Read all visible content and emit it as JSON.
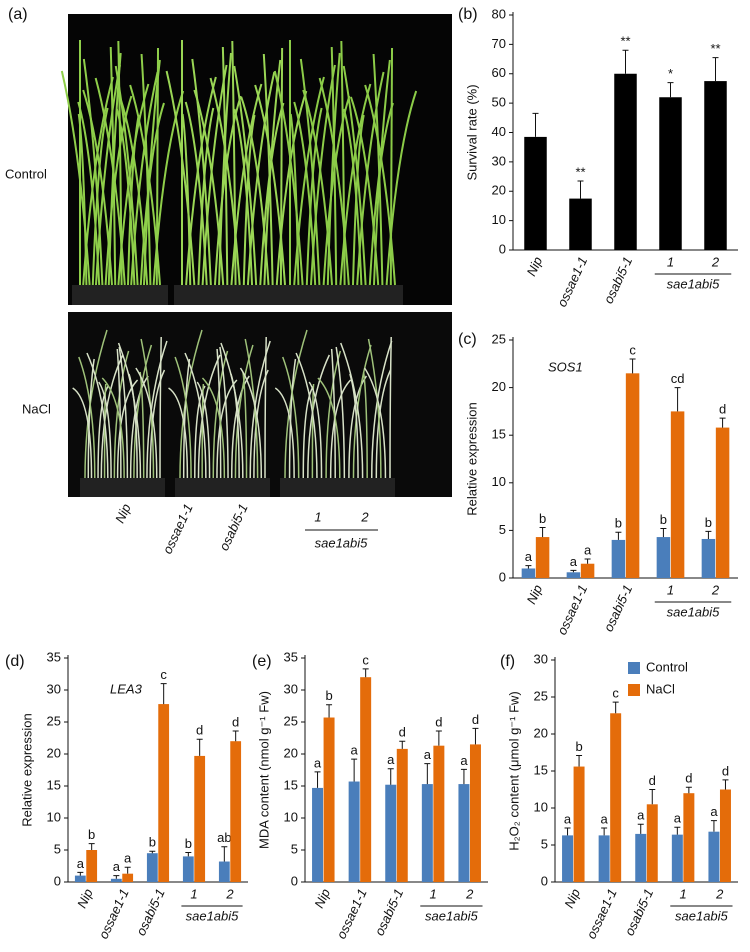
{
  "photo_panel": {
    "label": "(a)",
    "rows": [
      "Control",
      "NaCl"
    ],
    "categories": [
      "Nip",
      "ossae1-1",
      "osabi5-1",
      "1",
      "2"
    ],
    "group_label": "sae1abi5"
  },
  "chart_data": [
    {
      "type": "bar",
      "label": "(b)",
      "ylabel": "Survival rate (%)",
      "categories": [
        "Nip",
        "ossae1-1",
        "osabi5-1",
        "1",
        "2"
      ],
      "group_label": "sae1abi5",
      "ylim": [
        0,
        80
      ],
      "yticks": [
        0,
        10,
        20,
        30,
        40,
        50,
        60,
        70,
        80
      ],
      "series": [
        {
          "color": "#000000",
          "values": [
            38.5,
            17.5,
            60,
            52,
            57.5
          ],
          "errors": [
            8,
            6,
            8,
            5,
            8
          ],
          "labels": [
            null,
            "**",
            "**",
            "*",
            "**"
          ]
        }
      ]
    },
    {
      "type": "bar",
      "label": "(c)",
      "ylabel": "Relative expression",
      "gene": "SOS1",
      "categories": [
        "Nip",
        "ossae1-1",
        "osabi5-1",
        "1",
        "2"
      ],
      "group_label": "sae1abi5",
      "ylim": [
        0,
        25
      ],
      "yticks": [
        0,
        5,
        10,
        15,
        20,
        25
      ],
      "series": [
        {
          "name": "Control",
          "color": "#4a7ebb",
          "values": [
            1.0,
            0.6,
            4.0,
            4.3,
            4.1
          ],
          "errors": [
            0.3,
            0.2,
            0.8,
            0.9,
            0.8
          ],
          "labels": [
            "a",
            "a",
            "b",
            "b",
            "b"
          ]
        },
        {
          "name": "NaCl",
          "color": "#e46c0a",
          "values": [
            4.3,
            1.5,
            21.5,
            17.5,
            15.8
          ],
          "errors": [
            1.0,
            0.5,
            1.5,
            2.5,
            1.0
          ],
          "labels": [
            "b",
            "a",
            "c",
            "cd",
            "d"
          ]
        }
      ]
    },
    {
      "type": "bar",
      "label": "(d)",
      "ylabel": "Relative expression",
      "gene": "LEA3",
      "categories": [
        "Nip",
        "ossae1-1",
        "osabi5-1",
        "1",
        "2"
      ],
      "group_label": "sae1abi5",
      "ylim": [
        0,
        35
      ],
      "yticks": [
        0,
        5,
        10,
        15,
        20,
        25,
        30,
        35
      ],
      "series": [
        {
          "name": "Control",
          "color": "#4a7ebb",
          "values": [
            1.0,
            0.5,
            4.5,
            4.0,
            3.2
          ],
          "errors": [
            0.5,
            0.5,
            0.3,
            0.6,
            2.3
          ],
          "labels": [
            "a",
            "a",
            "b",
            "b",
            "ab"
          ]
        },
        {
          "name": "NaCl",
          "color": "#e46c0a",
          "values": [
            5.0,
            1.3,
            27.8,
            19.7,
            22.0
          ],
          "errors": [
            1.0,
            1.0,
            3.2,
            2.6,
            1.6
          ],
          "labels": [
            "b",
            "a",
            "c",
            "d",
            "d"
          ]
        }
      ]
    },
    {
      "type": "bar",
      "label": "(e)",
      "ylabel": "MDA content (nmol g⁻¹ Fw)",
      "categories": [
        "Nip",
        "ossae1-1",
        "osabi5-1",
        "1",
        "2"
      ],
      "group_label": "sae1abi5",
      "ylim": [
        0,
        35
      ],
      "yticks": [
        0,
        5,
        10,
        15,
        20,
        25,
        30,
        35
      ],
      "series": [
        {
          "name": "Control",
          "color": "#4a7ebb",
          "values": [
            14.7,
            15.7,
            15.2,
            15.3,
            15.3
          ],
          "errors": [
            2.5,
            3.5,
            2.5,
            3.2,
            2.3
          ],
          "labels": [
            "a",
            "a",
            "a",
            "a",
            "a"
          ]
        },
        {
          "name": "NaCl",
          "color": "#e46c0a",
          "values": [
            25.7,
            32.0,
            20.8,
            21.3,
            21.5
          ],
          "errors": [
            2.0,
            1.3,
            1.2,
            2.3,
            2.5
          ],
          "labels": [
            "b",
            "c",
            "d",
            "d",
            "d"
          ]
        }
      ]
    },
    {
      "type": "bar",
      "label": "(f)",
      "ylabel": "H₂O₂ content (μmol g⁻¹ Fw)",
      "categories": [
        "Nip",
        "ossae1-1",
        "osabi5-1",
        "1",
        "2"
      ],
      "group_label": "sae1abi5",
      "ylim": [
        0,
        30
      ],
      "yticks": [
        0,
        5,
        10,
        15,
        20,
        25,
        30
      ],
      "legend": "upper right",
      "series": [
        {
          "name": "Control",
          "color": "#4a7ebb",
          "values": [
            6.3,
            6.3,
            6.5,
            6.4,
            6.8
          ],
          "errors": [
            1.0,
            1.0,
            1.3,
            1.0,
            1.5
          ],
          "labels": [
            "a",
            "a",
            "a",
            "a",
            "a"
          ]
        },
        {
          "name": "NaCl",
          "color": "#e46c0a",
          "values": [
            15.6,
            22.8,
            10.5,
            12.0,
            12.5
          ],
          "errors": [
            1.5,
            1.5,
            2.0,
            0.8,
            1.3
          ],
          "labels": [
            "b",
            "c",
            "d",
            "d",
            "d"
          ]
        }
      ]
    }
  ]
}
